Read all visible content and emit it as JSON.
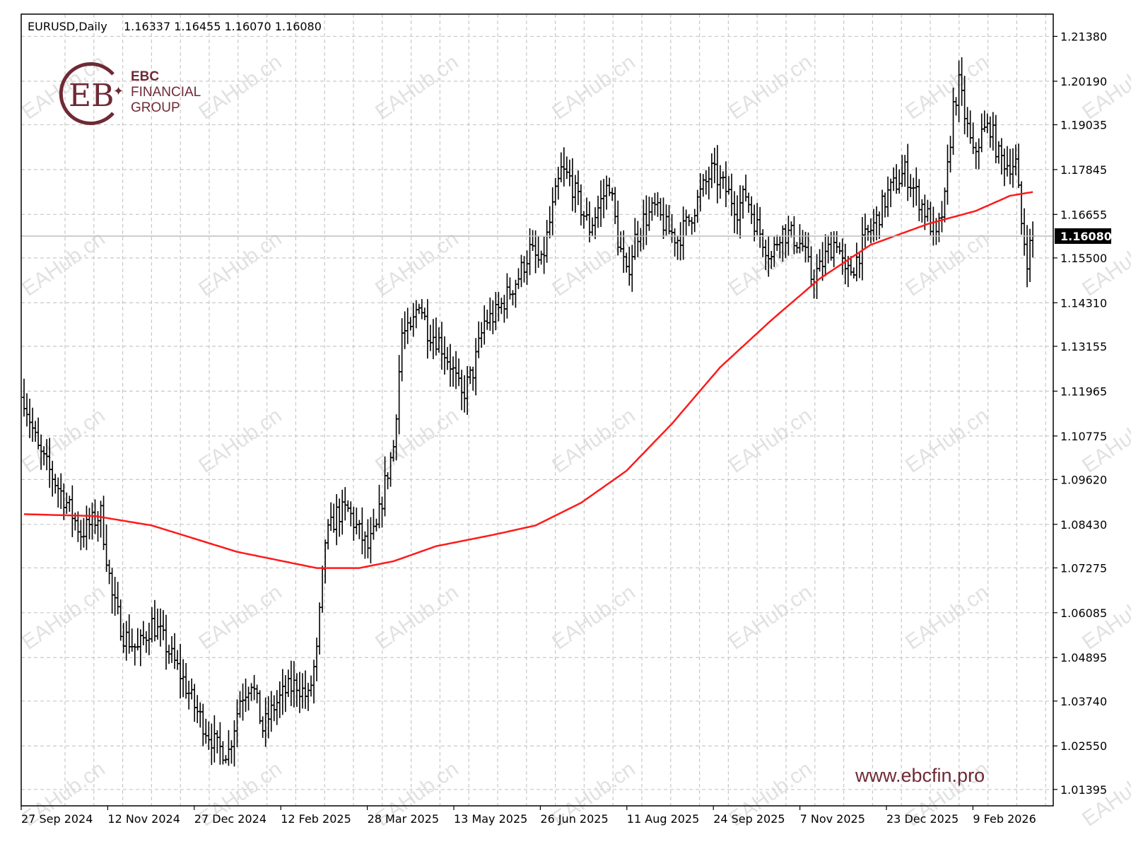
{
  "header": {
    "symbol": "EURUSD,Daily",
    "ohlc": "1.16337 1.16455 1.16070 1.16080"
  },
  "current_price_label": "1.16080",
  "logo": {
    "line1": "EBC",
    "line2": "FINANCIAL",
    "line3": "GROUP",
    "color": "#6e2a35"
  },
  "website": "www.ebcfin.pro",
  "watermark_text": "EAHub.cn",
  "colors": {
    "bars": "#000000",
    "moving_average": "#ff1a1a",
    "grid": "#c8c8c8",
    "brand": "#6e2a35"
  },
  "chart_data": {
    "type": "ohlc-bar",
    "symbol": "EURUSD",
    "timeframe": "Daily",
    "ylim": [
      1.0096,
      1.2197
    ],
    "y_ticks": [
      "1.21380",
      "1.20190",
      "1.19035",
      "1.17845",
      "1.16655",
      "1.15500",
      "1.14310",
      "1.13155",
      "1.11965",
      "1.10775",
      "1.09620",
      "1.08430",
      "1.07275",
      "1.06085",
      "1.04895",
      "1.03740",
      "1.02550",
      "1.01395"
    ],
    "x_ticks": [
      "27 Sep 2024",
      "12 Nov 2024",
      "27 Dec 2024",
      "12 Feb 2025",
      "28 Mar 2025",
      "13 May 2025",
      "26 Jun 2025",
      "11 Aug 2025",
      "24 Sep 2025",
      "7 Nov 2025",
      "23 Dec 2025",
      "9 Feb 2026"
    ],
    "last_close": 1.1608,
    "price_path_anchors": [
      {
        "i": 0,
        "p": 1.118
      },
      {
        "i": 5,
        "p": 1.104
      },
      {
        "i": 15,
        "p": 1.09
      },
      {
        "i": 20,
        "p": 1.082
      },
      {
        "i": 27,
        "p": 1.087
      },
      {
        "i": 31,
        "p": 1.065
      },
      {
        "i": 35,
        "p": 1.055
      },
      {
        "i": 40,
        "p": 1.051
      },
      {
        "i": 45,
        "p": 1.058
      },
      {
        "i": 48,
        "p": 1.055
      },
      {
        "i": 52,
        "p": 1.049
      },
      {
        "i": 56,
        "p": 1.043
      },
      {
        "i": 60,
        "p": 1.036
      },
      {
        "i": 64,
        "p": 1.03
      },
      {
        "i": 68,
        "p": 1.025
      },
      {
        "i": 72,
        "p": 1.024
      },
      {
        "i": 76,
        "p": 1.038
      },
      {
        "i": 80,
        "p": 1.043
      },
      {
        "i": 84,
        "p": 1.03
      },
      {
        "i": 88,
        "p": 1.036
      },
      {
        "i": 92,
        "p": 1.04
      },
      {
        "i": 96,
        "p": 1.042
      },
      {
        "i": 100,
        "p": 1.038
      },
      {
        "i": 103,
        "p": 1.05
      },
      {
        "i": 106,
        "p": 1.08
      },
      {
        "i": 110,
        "p": 1.087
      },
      {
        "i": 114,
        "p": 1.088
      },
      {
        "i": 118,
        "p": 1.082
      },
      {
        "i": 121,
        "p": 1.078
      },
      {
        "i": 124,
        "p": 1.083
      },
      {
        "i": 127,
        "p": 1.095
      },
      {
        "i": 130,
        "p": 1.105
      },
      {
        "i": 133,
        "p": 1.135
      },
      {
        "i": 136,
        "p": 1.135
      },
      {
        "i": 139,
        "p": 1.144
      },
      {
        "i": 142,
        "p": 1.136
      },
      {
        "i": 146,
        "p": 1.133
      },
      {
        "i": 150,
        "p": 1.127
      },
      {
        "i": 154,
        "p": 1.118
      },
      {
        "i": 158,
        "p": 1.125
      },
      {
        "i": 162,
        "p": 1.138
      },
      {
        "i": 166,
        "p": 1.14
      },
      {
        "i": 170,
        "p": 1.145
      },
      {
        "i": 174,
        "p": 1.15
      },
      {
        "i": 178,
        "p": 1.157
      },
      {
        "i": 182,
        "p": 1.153
      },
      {
        "i": 186,
        "p": 1.168
      },
      {
        "i": 189,
        "p": 1.178
      },
      {
        "i": 192,
        "p": 1.176
      },
      {
        "i": 195,
        "p": 1.17
      },
      {
        "i": 199,
        "p": 1.163
      },
      {
        "i": 203,
        "p": 1.17
      },
      {
        "i": 206,
        "p": 1.175
      },
      {
        "i": 209,
        "p": 1.16
      },
      {
        "i": 212,
        "p": 1.15
      },
      {
        "i": 215,
        "p": 1.16
      },
      {
        "i": 218,
        "p": 1.165
      },
      {
        "i": 222,
        "p": 1.168
      },
      {
        "i": 226,
        "p": 1.163
      },
      {
        "i": 230,
        "p": 1.16
      },
      {
        "i": 234,
        "p": 1.165
      },
      {
        "i": 238,
        "p": 1.172
      },
      {
        "i": 242,
        "p": 1.178
      },
      {
        "i": 245,
        "p": 1.175
      },
      {
        "i": 248,
        "p": 1.172
      },
      {
        "i": 251,
        "p": 1.168
      },
      {
        "i": 254,
        "p": 1.172
      },
      {
        "i": 257,
        "p": 1.165
      },
      {
        "i": 260,
        "p": 1.16
      },
      {
        "i": 263,
        "p": 1.155
      },
      {
        "i": 266,
        "p": 1.162
      },
      {
        "i": 270,
        "p": 1.161
      },
      {
        "i": 274,
        "p": 1.158
      },
      {
        "i": 277,
        "p": 1.15
      },
      {
        "i": 280,
        "p": 1.152
      },
      {
        "i": 283,
        "p": 1.157
      },
      {
        "i": 286,
        "p": 1.16
      },
      {
        "i": 289,
        "p": 1.15
      },
      {
        "i": 292,
        "p": 1.153
      },
      {
        "i": 296,
        "p": 1.16
      },
      {
        "i": 300,
        "p": 1.165
      },
      {
        "i": 304,
        "p": 1.172
      },
      {
        "i": 307,
        "p": 1.175
      },
      {
        "i": 310,
        "p": 1.178
      },
      {
        "i": 314,
        "p": 1.172
      },
      {
        "i": 318,
        "p": 1.166
      },
      {
        "i": 321,
        "p": 1.16
      },
      {
        "i": 324,
        "p": 1.17
      },
      {
        "i": 327,
        "p": 1.195
      },
      {
        "i": 329,
        "p": 1.201
      },
      {
        "i": 331,
        "p": 1.193
      },
      {
        "i": 334,
        "p": 1.182
      },
      {
        "i": 337,
        "p": 1.188
      },
      {
        "i": 340,
        "p": 1.19
      },
      {
        "i": 343,
        "p": 1.182
      },
      {
        "i": 346,
        "p": 1.18
      },
      {
        "i": 349,
        "p": 1.18
      },
      {
        "i": 351,
        "p": 1.164
      },
      {
        "i": 353,
        "p": 1.155
      },
      {
        "i": 355,
        "p": 1.161
      }
    ],
    "moving_average_anchors": [
      {
        "i": 0,
        "p": 1.087
      },
      {
        "i": 25,
        "p": 1.0865
      },
      {
        "i": 45,
        "p": 1.084
      },
      {
        "i": 75,
        "p": 1.077
      },
      {
        "i": 103,
        "p": 1.0727
      },
      {
        "i": 118,
        "p": 1.0727
      },
      {
        "i": 130,
        "p": 1.0745
      },
      {
        "i": 145,
        "p": 1.0785
      },
      {
        "i": 165,
        "p": 1.0815
      },
      {
        "i": 180,
        "p": 1.084
      },
      {
        "i": 196,
        "p": 1.09
      },
      {
        "i": 212,
        "p": 1.0985
      },
      {
        "i": 228,
        "p": 1.111
      },
      {
        "i": 245,
        "p": 1.126
      },
      {
        "i": 263,
        "p": 1.1385
      },
      {
        "i": 280,
        "p": 1.1495
      },
      {
        "i": 298,
        "p": 1.1585
      },
      {
        "i": 318,
        "p": 1.164
      },
      {
        "i": 335,
        "p": 1.1675
      },
      {
        "i": 347,
        "p": 1.1715
      },
      {
        "i": 355,
        "p": 1.1725
      }
    ]
  }
}
